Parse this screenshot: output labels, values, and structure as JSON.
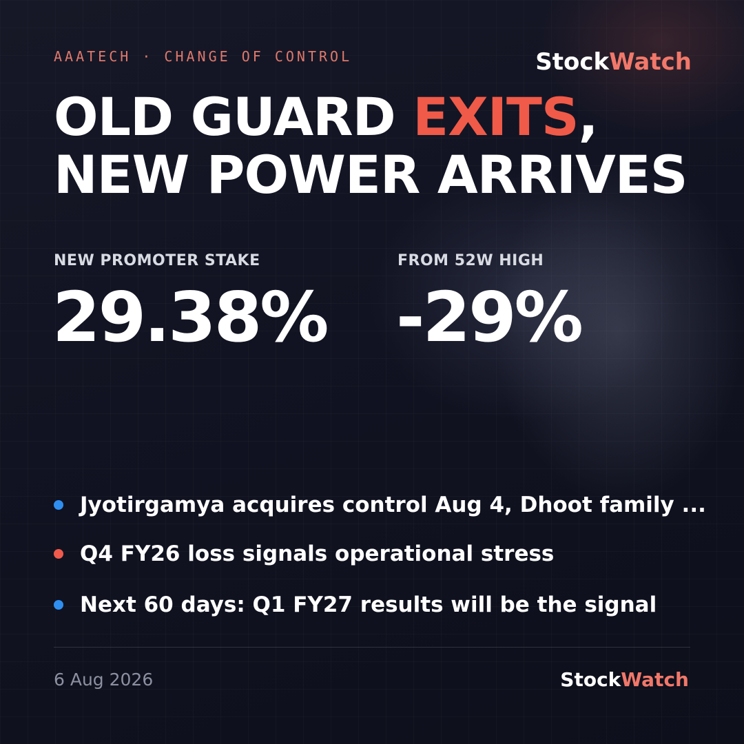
{
  "header": {
    "kicker": "AAATECH · CHANGE OF CONTROL",
    "brand": [
      "Stock",
      "Watch"
    ]
  },
  "headline": {
    "line1": [
      "OLD GUARD",
      "EXITS",
      ","
    ],
    "line2": "NEW POWER ARRIVES"
  },
  "stats": [
    {
      "label": "NEW PROMOTER STAKE",
      "value": "29.38%"
    },
    {
      "label": "FROM 52W HIGH",
      "value": "-29%"
    }
  ],
  "bullets": [
    {
      "text": "Jyotirgamya acquires control Aug 4, Dhoot family ...",
      "color": "#2f8ff0"
    },
    {
      "text": "Q4 FY26 loss signals operational stress",
      "color": "#ef5a4c"
    },
    {
      "text": "Next 60 days: Q1 FY27 results will be the signal",
      "color": "#2f8ff0"
    }
  ],
  "footer": {
    "date": "6 Aug 2026",
    "brand": [
      "Stock",
      "Watch"
    ]
  }
}
